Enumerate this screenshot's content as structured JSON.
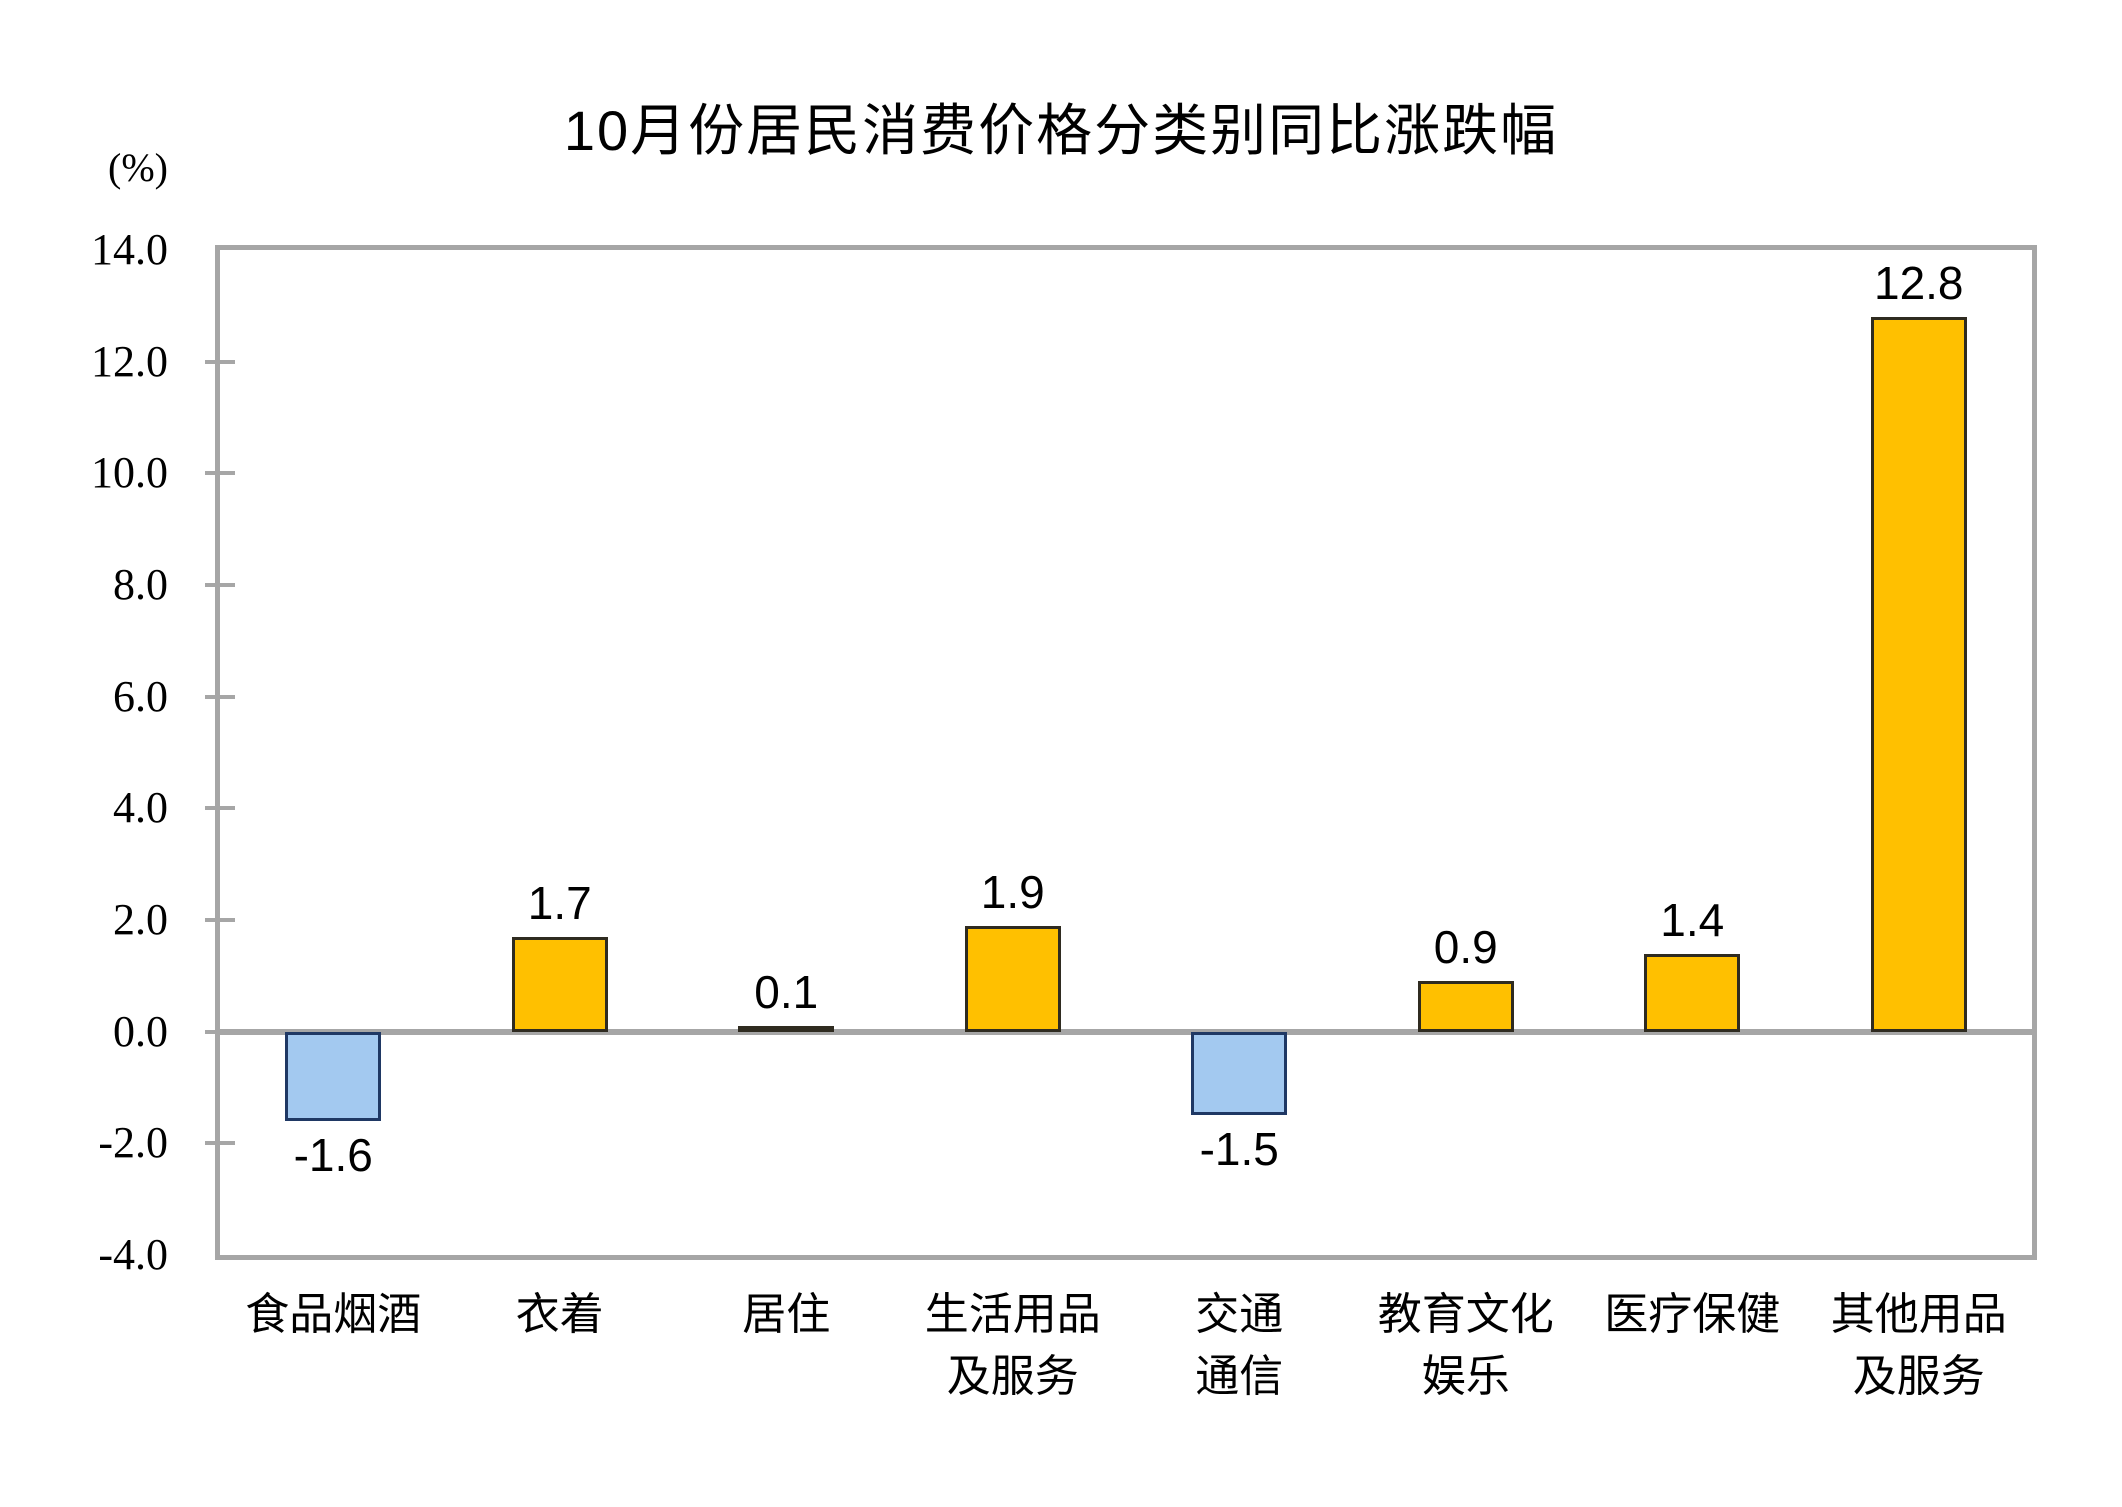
{
  "page": {
    "background": "#FFFFFF"
  },
  "chart_data": {
    "type": "bar",
    "title": "10月份居民消费价格分类别同比涨跌幅",
    "unit_label": "(%)",
    "xlabel": "",
    "ylabel": "(%)",
    "ylim": [
      -4.0,
      14.0
    ],
    "ytick_interval": 2.0,
    "yticklabels": [
      "14.0",
      "12.0",
      "10.0",
      "8.0",
      "6.0",
      "4.0",
      "2.0",
      "0.0",
      "-2.0",
      "-4.0"
    ],
    "categories": [
      "食品烟酒",
      "衣着",
      "居住",
      "生活用品及服务",
      "交通通信",
      "教育文化娱乐",
      "医疗保健",
      "其他用品及服务"
    ],
    "category_display_lines": [
      [
        "食品烟酒"
      ],
      [
        "衣着"
      ],
      [
        "居住"
      ],
      [
        "生活用品",
        "及服务"
      ],
      [
        "交通",
        "通信"
      ],
      [
        "教育文化",
        "娱乐"
      ],
      [
        "医疗保健"
      ],
      [
        "其他用品",
        "及服务"
      ]
    ],
    "values": [
      -1.6,
      1.7,
      0.1,
      1.9,
      -1.5,
      0.9,
      1.4,
      12.8
    ],
    "data_labels": [
      "-1.6",
      "1.7",
      "0.1",
      "1.9",
      "-1.5",
      "0.9",
      "1.4",
      "12.8"
    ],
    "grid": false,
    "legend": false,
    "colors": {
      "positive_fill": "#FFC000",
      "positive_border": "#2F2B20",
      "negative_fill": "#A3C9F0",
      "negative_border": "#1F3864",
      "axis": "#A6A6A6",
      "text": "#000000"
    }
  }
}
